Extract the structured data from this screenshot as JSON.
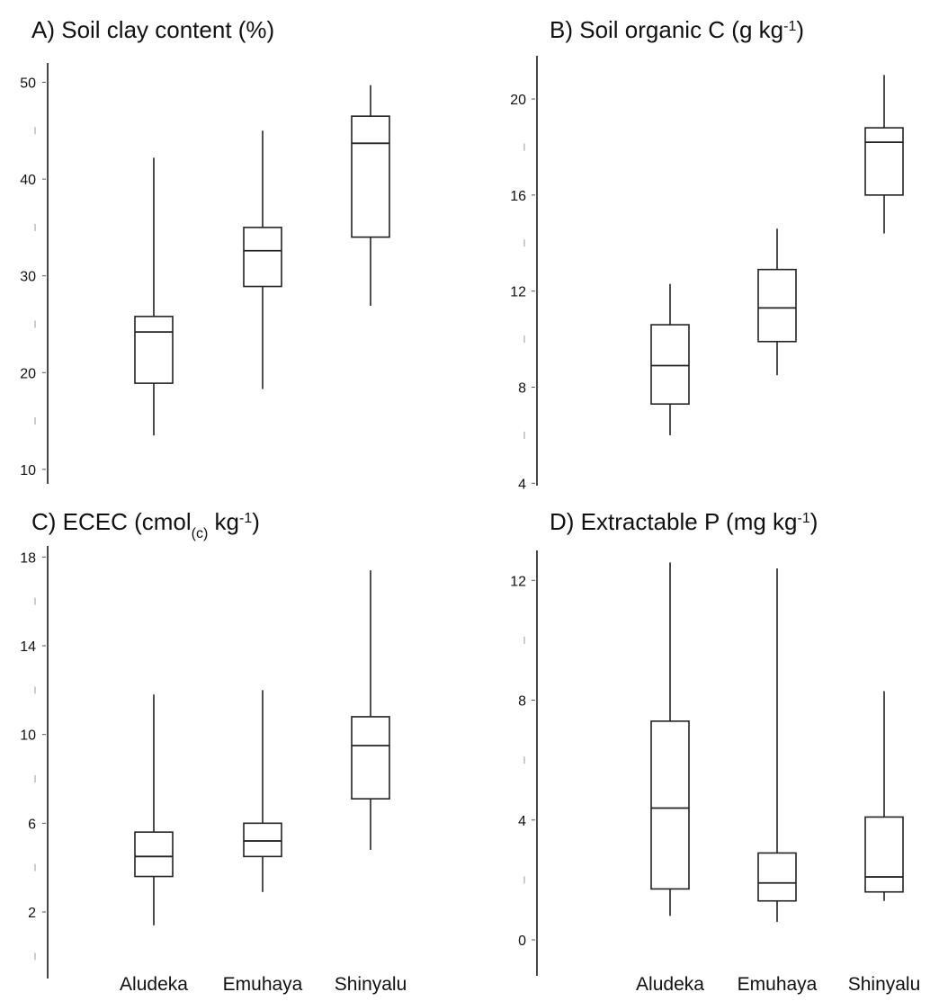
{
  "chart_data": [
    {
      "panel": "A",
      "type": "box",
      "title_parts": [
        {
          "t": "A) Soil clay content (%)"
        }
      ],
      "categories": [
        "Aludeka",
        "Emuhaya",
        "Shinyalu"
      ],
      "ylim": [
        8.5,
        52
      ],
      "yticks": [
        10,
        20,
        30,
        40,
        50
      ],
      "minor_ticks": [
        15,
        25,
        35,
        45
      ],
      "show_category_labels": false,
      "boxes": [
        {
          "category": "Aludeka",
          "min": 13.5,
          "q1": 18.9,
          "median": 24.2,
          "q3": 25.8,
          "max": 42.2
        },
        {
          "category": "Emuhaya",
          "min": 18.3,
          "q1": 28.9,
          "median": 32.6,
          "q3": 35.0,
          "max": 45.0
        },
        {
          "category": "Shinyalu",
          "min": 26.9,
          "q1": 34.0,
          "median": 43.7,
          "q3": 46.5,
          "max": 49.7
        }
      ]
    },
    {
      "panel": "B",
      "type": "box",
      "title_parts": [
        {
          "t": "B) Soil organic C (g kg"
        },
        {
          "t": "-1",
          "sup": true
        },
        {
          "t": ")"
        }
      ],
      "categories": [
        "Aludeka",
        "Emuhaya",
        "Shinyalu"
      ],
      "ylim": [
        3.9,
        21.8
      ],
      "yticks": [
        4,
        8,
        12,
        16,
        20
      ],
      "minor_ticks": [
        6,
        10,
        14,
        18
      ],
      "show_category_labels": false,
      "boxes": [
        {
          "category": "Aludeka",
          "min": 6.0,
          "q1": 7.3,
          "median": 8.9,
          "q3": 10.6,
          "max": 12.3
        },
        {
          "category": "Emuhaya",
          "min": 8.5,
          "q1": 9.9,
          "median": 11.3,
          "q3": 12.9,
          "max": 14.6
        },
        {
          "category": "Shinyalu",
          "min": 14.4,
          "q1": 16.0,
          "median": 18.2,
          "q3": 18.8,
          "max": 21.0
        }
      ]
    },
    {
      "panel": "C",
      "type": "box",
      "title_parts": [
        {
          "t": "C) ECEC (cmol"
        },
        {
          "t": "(c)",
          "sub": true
        },
        {
          "t": " kg"
        },
        {
          "t": "-1",
          "sup": true
        },
        {
          "t": ")"
        }
      ],
      "categories": [
        "Aludeka",
        "Emuhaya",
        "Shinyalu"
      ],
      "ylim": [
        -1.0,
        18.5
      ],
      "yticks": [
        2,
        6,
        10,
        14,
        18
      ],
      "minor_ticks": [
        0,
        4,
        8,
        12,
        16
      ],
      "show_category_labels": true,
      "boxes": [
        {
          "category": "Aludeka",
          "min": 1.4,
          "q1": 3.6,
          "median": 4.5,
          "q3": 5.6,
          "max": 11.8
        },
        {
          "category": "Emuhaya",
          "min": 2.9,
          "q1": 4.5,
          "median": 5.2,
          "q3": 6.0,
          "max": 12.0
        },
        {
          "category": "Shinyalu",
          "min": 4.8,
          "q1": 7.1,
          "median": 9.5,
          "q3": 10.8,
          "max": 17.4
        }
      ]
    },
    {
      "panel": "D",
      "type": "box",
      "title_parts": [
        {
          "t": "D) Extractable P (mg kg"
        },
        {
          "t": "-1",
          "sup": true
        },
        {
          "t": ")"
        }
      ],
      "categories": [
        "Aludeka",
        "Emuhaya",
        "Shinyalu"
      ],
      "ylim": [
        -1.2,
        13.0
      ],
      "yticks": [
        0,
        4,
        8,
        12
      ],
      "minor_ticks": [
        2,
        6,
        10
      ],
      "show_category_labels": true,
      "boxes": [
        {
          "category": "Aludeka",
          "min": 0.8,
          "q1": 1.7,
          "median": 4.4,
          "q3": 7.3,
          "max": 12.6
        },
        {
          "category": "Emuhaya",
          "min": 0.6,
          "q1": 1.3,
          "median": 1.9,
          "q3": 2.9,
          "max": 12.4
        },
        {
          "category": "Shinyalu",
          "min": 1.3,
          "q1": 1.6,
          "median": 2.1,
          "q3": 4.1,
          "max": 8.3
        }
      ]
    }
  ]
}
